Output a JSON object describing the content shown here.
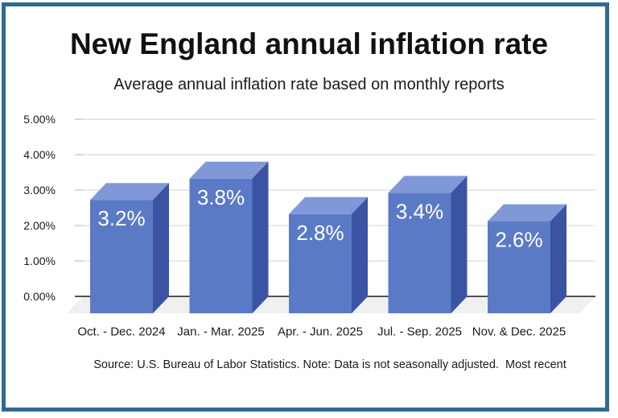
{
  "window": {
    "border_color": "#2e6a94",
    "background_color": "#ffffff"
  },
  "header": {
    "title": "New England annual inflation rate",
    "subtitle": "Average annual inflation rate based on monthly reports"
  },
  "chart_data": {
    "type": "bar",
    "effect": "3d-column",
    "title": "New England annual inflation rate",
    "subtitle": "Average annual inflation rate based on monthly reports",
    "categories": [
      "Oct. - Dec. 2024",
      "Jan. - Mar. 2025",
      "Apr. - Jun. 2025",
      "Jul. - Sep. 2025",
      "Nov. & Dec. 2025"
    ],
    "values": [
      3.2,
      3.8,
      2.8,
      3.4,
      2.6
    ],
    "data_labels": [
      "3.2%",
      "3.8%",
      "2.8%",
      "3.4%",
      "2.6%"
    ],
    "xlabel": "",
    "ylabel": "",
    "ylim": [
      0,
      5
    ],
    "y_tick_labels": [
      "0.00%",
      "1.00%",
      "2.00%",
      "3.00%",
      "4.00%",
      "5.00%"
    ],
    "y_tick_values": [
      0,
      1,
      2,
      3,
      4,
      5
    ],
    "grid": true,
    "legend": "none",
    "colors": {
      "bar_front": "#5b7ac6",
      "bar_top": "#8098d7",
      "bar_side": "#3a53a3",
      "gridline": "#d9d9d9",
      "tick": "#c2c2c2",
      "axis_line": "#1a1a1a",
      "floor": "#f0f0f0",
      "data_label_text": "#ffffff",
      "axis_text": "#1a1a1a"
    }
  },
  "footer": {
    "source_note": "Source: U.S. Bureau of Labor Statistics. Note: Data is not seasonally adjusted.  Most recent"
  }
}
